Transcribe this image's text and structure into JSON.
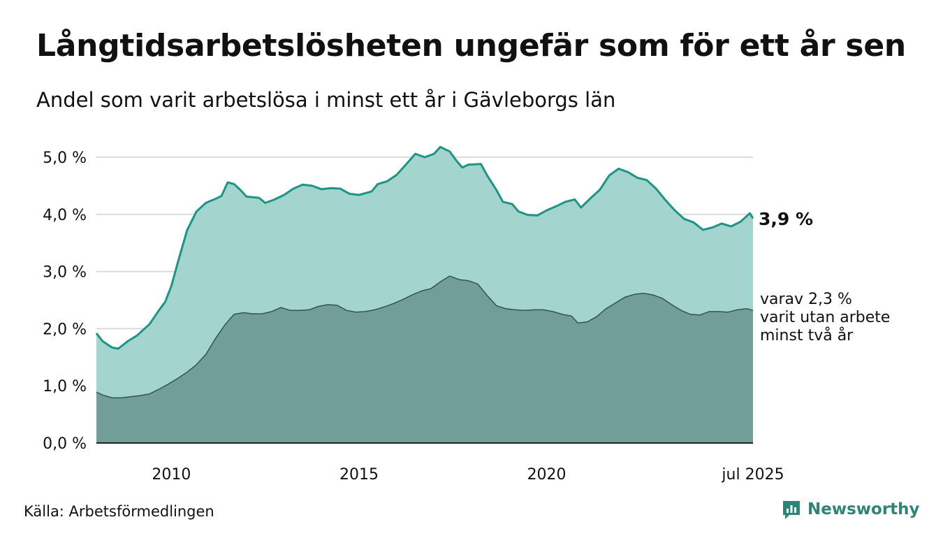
{
  "header": {
    "title": "Långtidsarbetslösheten ungefär som för ett år sen",
    "subtitle": "Andel som varit arbetslösa i minst ett år i Gävleborgs län"
  },
  "footer": {
    "source": "Källa: Arbetsförmedlingen",
    "brand": "Newsworthy"
  },
  "colors": {
    "upper_fill": "#a3d4ce",
    "upper_line": "#1e9484",
    "lower_fill": "#729e98",
    "lower_line": "#33544f",
    "grid": "#dcdcdc",
    "axis": "#222222"
  },
  "chart_data": {
    "type": "area",
    "ylim": [
      0,
      5.0
    ],
    "yticks": [
      0,
      1,
      2,
      3,
      4,
      5
    ],
    "ytick_labels": [
      "0,0 %",
      "1,0 %",
      "2,0 %",
      "3,0 %",
      "4,0 %",
      "5,0 %"
    ],
    "xlim": [
      "2008-01",
      "2025-07"
    ],
    "xtick_labels": [
      "2010",
      "2015",
      "2020",
      "jul 2025"
    ],
    "xtick_values": [
      "2010-01",
      "2015-01",
      "2020-01",
      "2025-07"
    ],
    "grid": true,
    "series": [
      {
        "points": [
          [
            "2008-01",
            1.92
          ],
          [
            "2008-03",
            1.78
          ],
          [
            "2008-06",
            1.67
          ],
          [
            "2008-08",
            1.65
          ],
          [
            "2008-11",
            1.78
          ],
          [
            "2009-02",
            1.88
          ],
          [
            "2009-06",
            2.08
          ],
          [
            "2009-09",
            2.32
          ],
          [
            "2009-11",
            2.47
          ],
          [
            "2010-01",
            2.75
          ],
          [
            "2010-03",
            3.15
          ],
          [
            "2010-06",
            3.72
          ],
          [
            "2010-09",
            4.05
          ],
          [
            "2010-12",
            4.2
          ],
          [
            "2011-03",
            4.27
          ],
          [
            "2011-05",
            4.32
          ],
          [
            "2011-07",
            4.56
          ],
          [
            "2011-09",
            4.53
          ],
          [
            "2011-11",
            4.43
          ],
          [
            "2012-01",
            4.31
          ],
          [
            "2012-05",
            4.29
          ],
          [
            "2012-07",
            4.2
          ],
          [
            "2012-10",
            4.26
          ],
          [
            "2013-01",
            4.34
          ],
          [
            "2013-04",
            4.45
          ],
          [
            "2013-07",
            4.52
          ],
          [
            "2013-10",
            4.5
          ],
          [
            "2014-01",
            4.44
          ],
          [
            "2014-04",
            4.46
          ],
          [
            "2014-07",
            4.45
          ],
          [
            "2014-10",
            4.36
          ],
          [
            "2015-01",
            4.34
          ],
          [
            "2015-05",
            4.4
          ],
          [
            "2015-07",
            4.53
          ],
          [
            "2015-10",
            4.58
          ],
          [
            "2016-01",
            4.69
          ],
          [
            "2016-04",
            4.87
          ],
          [
            "2016-07",
            5.06
          ],
          [
            "2016-10",
            5.0
          ],
          [
            "2017-01",
            5.06
          ],
          [
            "2017-03",
            5.18
          ],
          [
            "2017-06",
            5.1
          ],
          [
            "2017-08",
            4.95
          ],
          [
            "2017-10",
            4.82
          ],
          [
            "2017-12",
            4.87
          ],
          [
            "2018-04",
            4.88
          ],
          [
            "2018-06",
            4.68
          ],
          [
            "2018-09",
            4.42
          ],
          [
            "2018-11",
            4.22
          ],
          [
            "2019-02",
            4.18
          ],
          [
            "2019-04",
            4.05
          ],
          [
            "2019-07",
            3.99
          ],
          [
            "2019-10",
            3.98
          ],
          [
            "2020-01",
            4.07
          ],
          [
            "2020-04",
            4.14
          ],
          [
            "2020-07",
            4.22
          ],
          [
            "2020-10",
            4.26
          ],
          [
            "2020-12",
            4.12
          ],
          [
            "2021-03",
            4.28
          ],
          [
            "2021-06",
            4.43
          ],
          [
            "2021-09",
            4.68
          ],
          [
            "2021-12",
            4.8
          ],
          [
            "2022-03",
            4.74
          ],
          [
            "2022-06",
            4.64
          ],
          [
            "2022-09",
            4.6
          ],
          [
            "2022-12",
            4.45
          ],
          [
            "2023-03",
            4.25
          ],
          [
            "2023-06",
            4.07
          ],
          [
            "2023-09",
            3.92
          ],
          [
            "2023-12",
            3.86
          ],
          [
            "2024-03",
            3.73
          ],
          [
            "2024-06",
            3.77
          ],
          [
            "2024-09",
            3.84
          ],
          [
            "2024-12",
            3.79
          ],
          [
            "2025-03",
            3.87
          ],
          [
            "2025-06",
            4.02
          ],
          [
            "2025-07",
            3.93
          ]
        ]
      },
      {
        "points": [
          [
            "2008-01",
            0.89
          ],
          [
            "2008-03",
            0.84
          ],
          [
            "2008-06",
            0.79
          ],
          [
            "2008-09",
            0.79
          ],
          [
            "2008-12",
            0.81
          ],
          [
            "2009-03",
            0.83
          ],
          [
            "2009-06",
            0.86
          ],
          [
            "2009-09",
            0.94
          ],
          [
            "2009-12",
            1.03
          ],
          [
            "2010-03",
            1.13
          ],
          [
            "2010-06",
            1.24
          ],
          [
            "2010-09",
            1.37
          ],
          [
            "2010-12",
            1.55
          ],
          [
            "2011-03",
            1.82
          ],
          [
            "2011-06",
            2.06
          ],
          [
            "2011-09",
            2.25
          ],
          [
            "2011-12",
            2.28
          ],
          [
            "2012-03",
            2.26
          ],
          [
            "2012-06",
            2.26
          ],
          [
            "2012-09",
            2.3
          ],
          [
            "2012-12",
            2.37
          ],
          [
            "2013-03",
            2.32
          ],
          [
            "2013-06",
            2.32
          ],
          [
            "2013-09",
            2.33
          ],
          [
            "2013-12",
            2.39
          ],
          [
            "2014-03",
            2.42
          ],
          [
            "2014-06",
            2.41
          ],
          [
            "2014-09",
            2.32
          ],
          [
            "2014-12",
            2.29
          ],
          [
            "2015-03",
            2.3
          ],
          [
            "2015-06",
            2.33
          ],
          [
            "2015-09",
            2.38
          ],
          [
            "2015-12",
            2.44
          ],
          [
            "2016-03",
            2.51
          ],
          [
            "2016-06",
            2.59
          ],
          [
            "2016-09",
            2.66
          ],
          [
            "2016-12",
            2.7
          ],
          [
            "2017-03",
            2.82
          ],
          [
            "2017-06",
            2.92
          ],
          [
            "2017-09",
            2.86
          ],
          [
            "2017-12",
            2.84
          ],
          [
            "2018-03",
            2.78
          ],
          [
            "2018-06",
            2.58
          ],
          [
            "2018-09",
            2.4
          ],
          [
            "2018-12",
            2.35
          ],
          [
            "2019-03",
            2.33
          ],
          [
            "2019-06",
            2.32
          ],
          [
            "2019-09",
            2.33
          ],
          [
            "2019-12",
            2.33
          ],
          [
            "2020-03",
            2.3
          ],
          [
            "2020-06",
            2.25
          ],
          [
            "2020-09",
            2.22
          ],
          [
            "2020-11",
            2.1
          ],
          [
            "2021-02",
            2.12
          ],
          [
            "2021-05",
            2.21
          ],
          [
            "2021-08",
            2.35
          ],
          [
            "2021-11",
            2.45
          ],
          [
            "2022-02",
            2.55
          ],
          [
            "2022-05",
            2.6
          ],
          [
            "2022-08",
            2.62
          ],
          [
            "2022-11",
            2.59
          ],
          [
            "2023-02",
            2.53
          ],
          [
            "2023-05",
            2.42
          ],
          [
            "2023-08",
            2.32
          ],
          [
            "2023-11",
            2.25
          ],
          [
            "2024-02",
            2.24
          ],
          [
            "2024-05",
            2.3
          ],
          [
            "2024-08",
            2.3
          ],
          [
            "2024-11",
            2.29
          ],
          [
            "2025-02",
            2.33
          ],
          [
            "2025-05",
            2.35
          ],
          [
            "2025-07",
            2.32
          ]
        ]
      }
    ],
    "annotations": {
      "upper_label": "3,9 %",
      "lower_label_lines": [
        "varav 2,3 %",
        "varit utan arbete",
        "minst två år"
      ]
    }
  }
}
